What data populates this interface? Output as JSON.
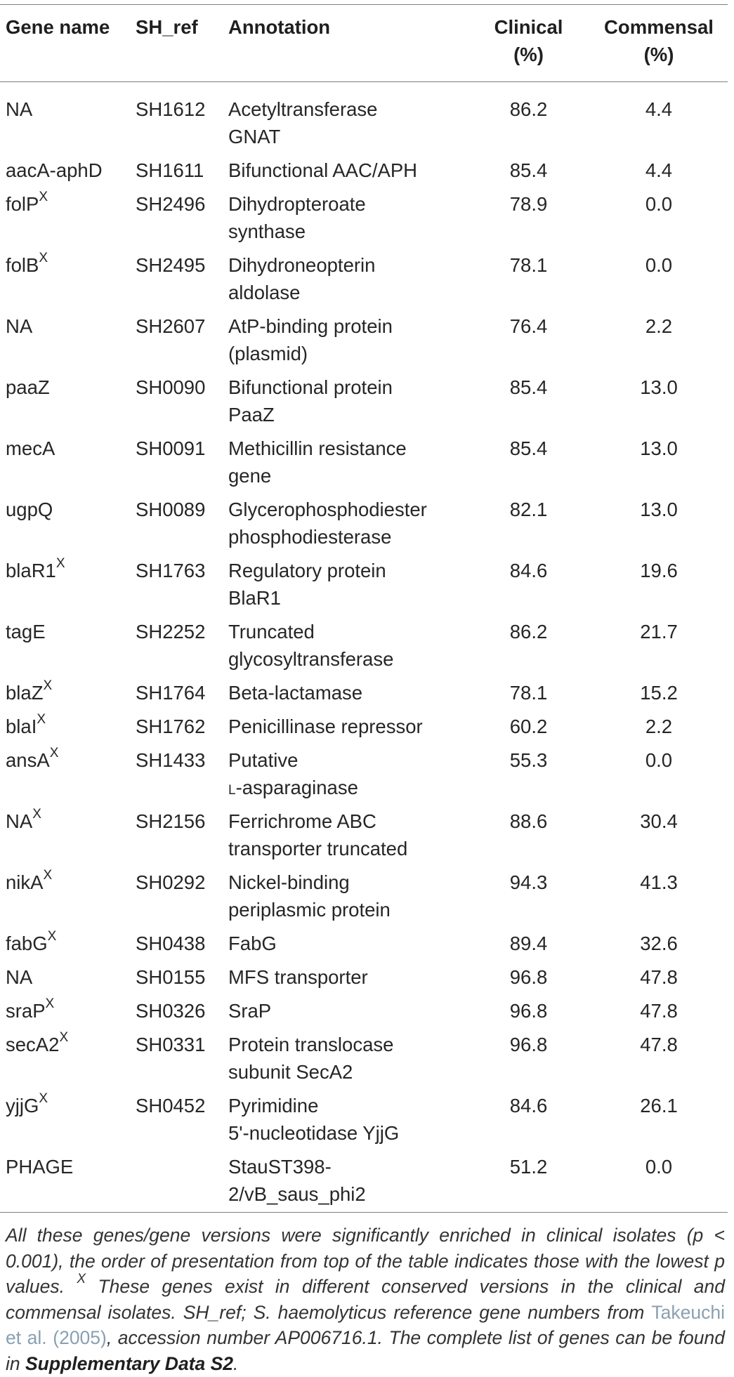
{
  "table": {
    "headers": {
      "gene": "Gene name",
      "ref": "SH_ref",
      "annotation": "Annotation",
      "clinical_line1": "Clinical",
      "clinical_line2": "(%)",
      "commensal_line1": "Commensal",
      "commensal_line2": "(%)"
    },
    "superscript_marker": "X",
    "rows": [
      {
        "gene": "NA",
        "sup": "",
        "ref": "SH1612",
        "ann1": "Acetyltransferase",
        "ann2": "GNAT",
        "clinical": "86.2",
        "commensal": "4.4"
      },
      {
        "gene": "aacA-aphD",
        "sup": "",
        "ref": "SH1611",
        "ann1": "Bifunctional AAC/APH",
        "ann2": "",
        "clinical": "85.4",
        "commensal": "4.4"
      },
      {
        "gene": "folP",
        "sup": "X",
        "ref": "SH2496",
        "ann1": "Dihydropteroate",
        "ann2": "synthase",
        "clinical": "78.9",
        "commensal": "0.0"
      },
      {
        "gene": "folB",
        "sup": "X",
        "ref": "SH2495",
        "ann1": "Dihydroneopterin",
        "ann2": "aldolase",
        "clinical": "78.1",
        "commensal": "0.0"
      },
      {
        "gene": "NA",
        "sup": "",
        "ref": "SH2607",
        "ann1": "AtP-binding protein",
        "ann2": "(plasmid)",
        "clinical": "76.4",
        "commensal": "2.2"
      },
      {
        "gene": "paaZ",
        "sup": "",
        "ref": "SH0090",
        "ann1": "Bifunctional protein",
        "ann2": "PaaZ",
        "clinical": "85.4",
        "commensal": "13.0"
      },
      {
        "gene": "mecA",
        "sup": "",
        "ref": "SH0091",
        "ann1": "Methicillin resistance",
        "ann2": "gene",
        "clinical": "85.4",
        "commensal": "13.0"
      },
      {
        "gene": "ugpQ",
        "sup": "",
        "ref": "SH0089",
        "ann1": "Glycerophosphodiester",
        "ann2": "phosphodiesterase",
        "clinical": "82.1",
        "commensal": "13.0"
      },
      {
        "gene": "blaR1",
        "sup": "X",
        "ref": "SH1763",
        "ann1": "Regulatory protein",
        "ann2": "BlaR1",
        "clinical": "84.6",
        "commensal": "19.6"
      },
      {
        "gene": "tagE",
        "sup": "",
        "ref": "SH2252",
        "ann1": "Truncated",
        "ann2": "glycosyltransferase",
        "clinical": "86.2",
        "commensal": "21.7"
      },
      {
        "gene": "blaZ",
        "sup": "X",
        "ref": "SH1764",
        "ann1": "Beta-lactamase",
        "ann2": "",
        "clinical": "78.1",
        "commensal": "15.2"
      },
      {
        "gene": "blaI",
        "sup": "X",
        "ref": "SH1762",
        "ann1": "Penicillinase repressor",
        "ann2": "",
        "clinical": "60.2",
        "commensal": "2.2"
      },
      {
        "gene": "ansA",
        "sup": "X",
        "ref": "SH1433",
        "ann1": "Putative",
        "ann2_prefix": "L",
        "ann2": "-asparaginase",
        "clinical": "55.3",
        "commensal": "0.0"
      },
      {
        "gene": "NA",
        "sup": "X",
        "ref": "SH2156",
        "ann1": "Ferrichrome ABC",
        "ann2": "transporter truncated",
        "clinical": "88.6",
        "commensal": "30.4"
      },
      {
        "gene": "nikA",
        "sup": "X",
        "ref": "SH0292",
        "ann1": "Nickel-binding",
        "ann2": "periplasmic protein",
        "clinical": "94.3",
        "commensal": "41.3"
      },
      {
        "gene": "fabG",
        "sup": "X",
        "ref": "SH0438",
        "ann1": "FabG",
        "ann2": "",
        "clinical": "89.4",
        "commensal": "32.6"
      },
      {
        "gene": "NA",
        "sup": "",
        "ref": "SH0155",
        "ann1": "MFS transporter",
        "ann2": "",
        "clinical": "96.8",
        "commensal": "47.8"
      },
      {
        "gene": "sraP",
        "sup": "X",
        "ref": "SH0326",
        "ann1": "SraP",
        "ann2": "",
        "clinical": "96.8",
        "commensal": "47.8"
      },
      {
        "gene": "secA2",
        "sup": "X",
        "ref": "SH0331",
        "ann1": "Protein translocase",
        "ann2": "subunit SecA2",
        "clinical": "96.8",
        "commensal": "47.8"
      },
      {
        "gene": "yjjG",
        "sup": "X",
        "ref": "SH0452",
        "ann1": "Pyrimidine",
        "ann2": "5'-nucleotidase YjjG",
        "clinical": "84.6",
        "commensal": "26.1"
      },
      {
        "gene": "PHAGE",
        "sup": "",
        "ref": "",
        "ann1": "StauST398-",
        "ann2": "2/vB_saus_phi2",
        "clinical": "51.2",
        "commensal": "0.0"
      }
    ]
  },
  "footnote": {
    "part1": "All these genes/gene versions were significantly enriched in clinical isolates (p < 0.001), the order of presentation from top of the table indicates those with the lowest p values. ",
    "marker": "X",
    "part2": " These genes exist in different conserved versions in the clinical and commensal isolates. SH_ref; S. haemolyticus reference gene numbers from ",
    "link": "Takeuchi et al. (2005)",
    "part3": ", accession number AP006716.1. The complete list of genes can be found in ",
    "strong": "Supplementary Data S2",
    "part4": "."
  }
}
